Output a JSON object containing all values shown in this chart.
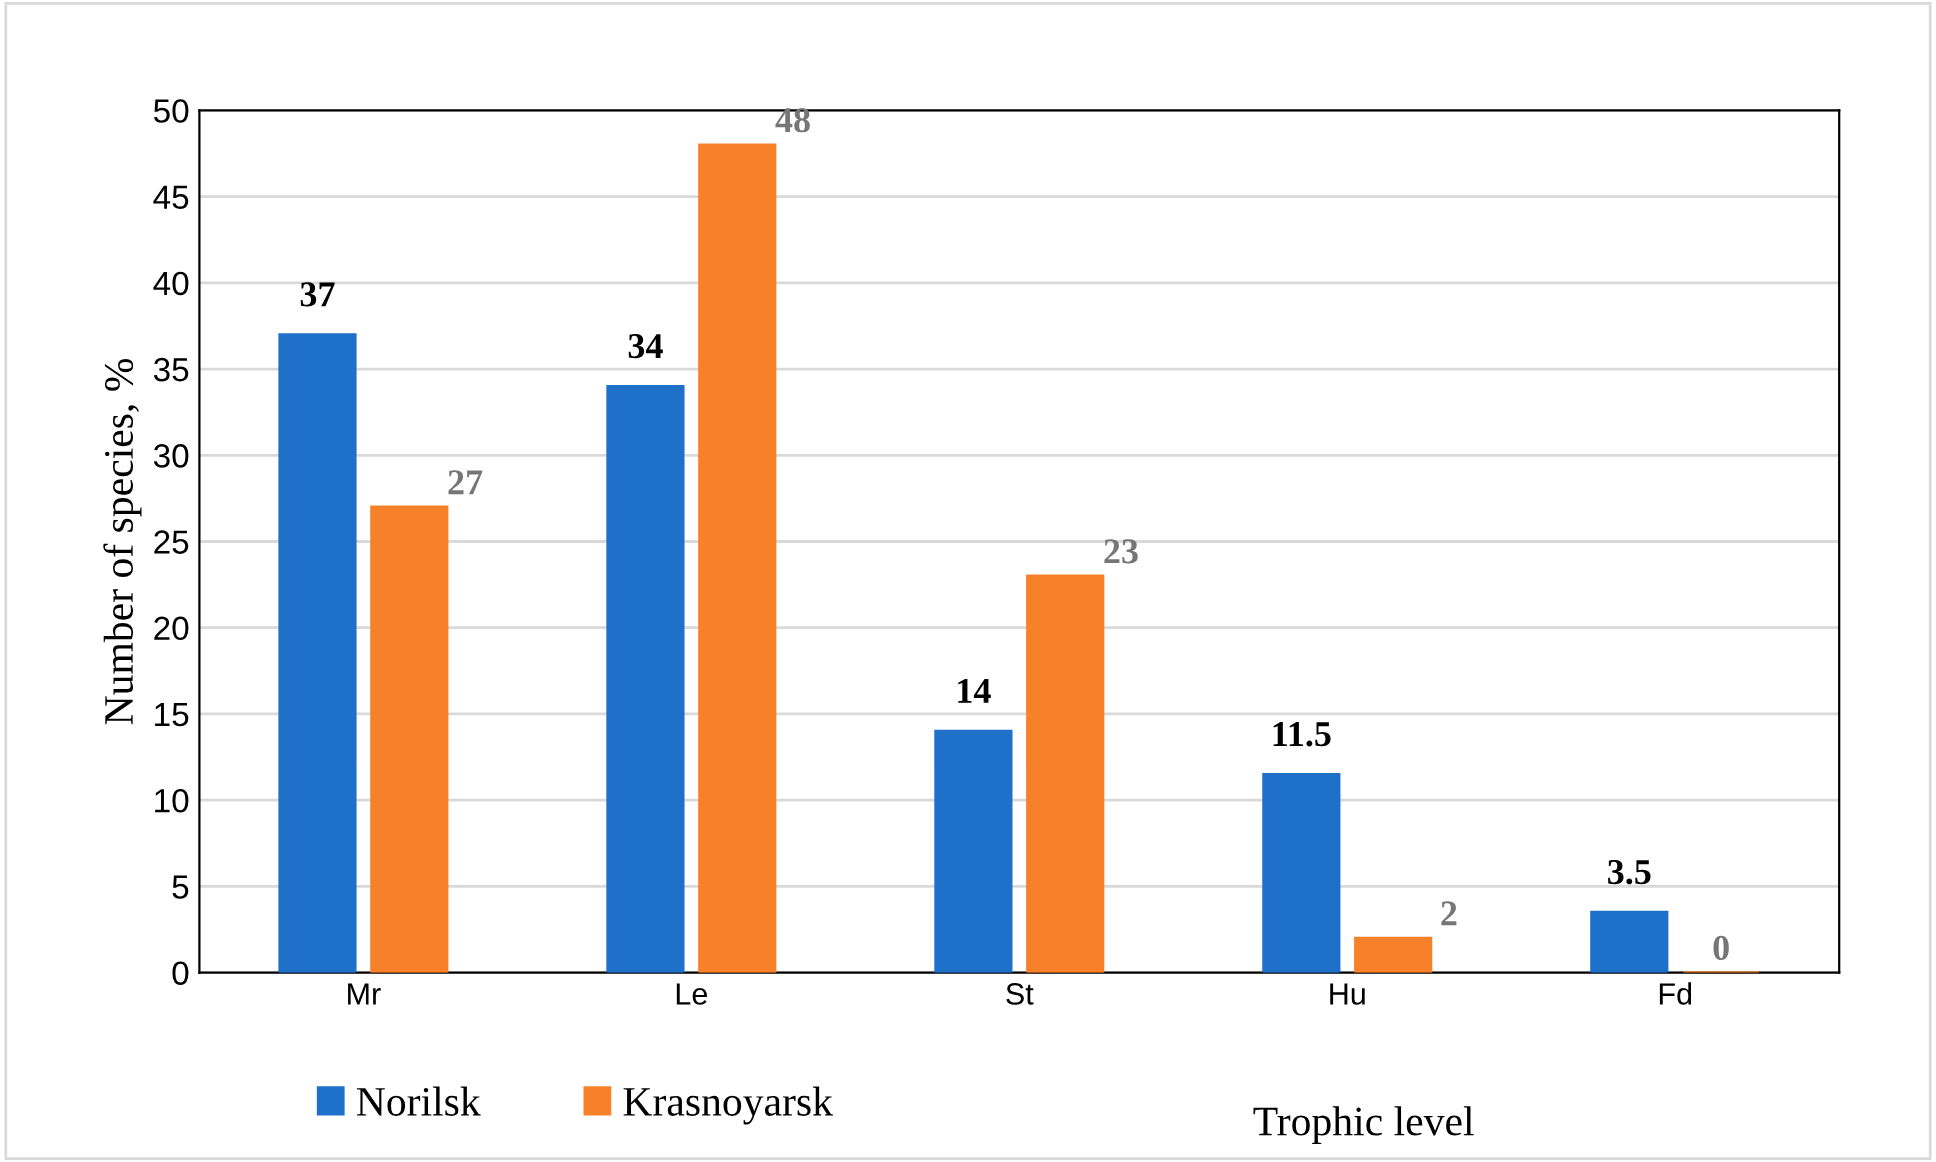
{
  "chart_data": {
    "type": "bar",
    "xlabel": "Trophic level",
    "ylabel": "Number of species, %",
    "categories": [
      "Mr",
      "Le",
      "St",
      "Hu",
      "Fd"
    ],
    "series": [
      {
        "name": "Norilsk",
        "color": "#1f70c8",
        "values": [
          37,
          34,
          14,
          11.5,
          3.5
        ]
      },
      {
        "name": "Krasnoyarsk",
        "color": "#f7802a",
        "values": [
          27,
          48,
          23,
          2,
          0
        ]
      }
    ],
    "ylim": [
      0,
      50
    ],
    "yticks": [
      0,
      5,
      10,
      15,
      20,
      25,
      30,
      35,
      40,
      45,
      50
    ],
    "grid": "y",
    "legend": "bottom",
    "data_labels": true
  }
}
